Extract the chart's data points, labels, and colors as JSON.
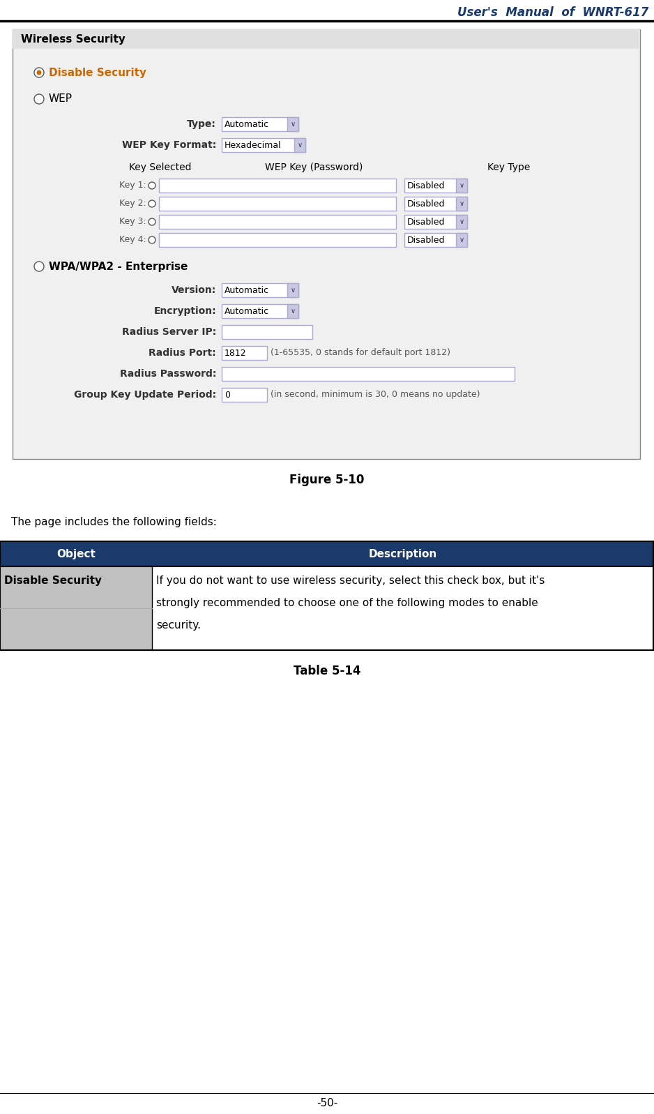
{
  "header_title": "User's  Manual  of  WNRT-617",
  "header_color": "#1a3a6b",
  "page_bg": "#ffffff",
  "figure_caption": "Figure 5-10",
  "table_caption": "Table 5-14",
  "intro_text": "The page includes the following fields:",
  "footer_text": "-50-",
  "table_header_bg": "#1a3a6b",
  "table_header_text_color": "#ffffff",
  "table_row_bg": "#c0c0c0",
  "col1_label": "Object",
  "col2_label": "Description",
  "row1_col1": "Disable Security",
  "row1_col2_lines": [
    "If you do not want to use wireless security, select this check box, but it's",
    "strongly recommended to choose one of the following modes to enable",
    "security."
  ]
}
